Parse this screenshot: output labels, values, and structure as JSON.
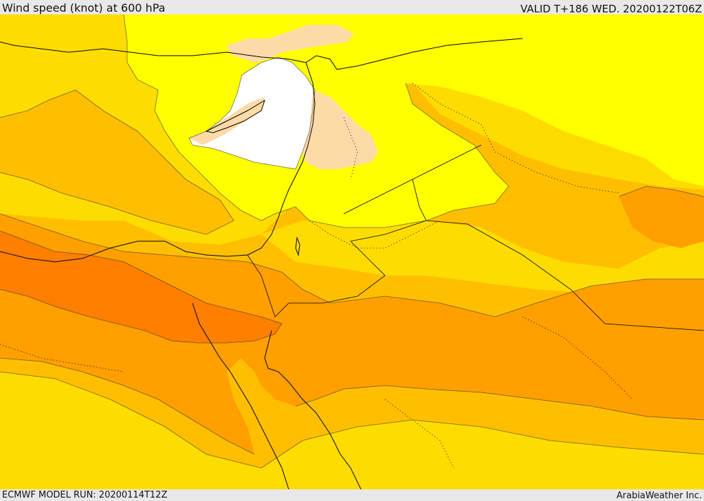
{
  "header": {
    "title": "Wind speed (knot) at 600 hPa",
    "valid": "VALID T+186 WED. 20200122T06Z"
  },
  "footer": {
    "model_run": "ECMWF MODEL RUN: 20200114T12Z",
    "credit": "ArabiaWeather Inc."
  },
  "map": {
    "colors": {
      "calm": "#ffffff",
      "peach": "#fcdba8",
      "yellow": "#ffff00",
      "yellow_orange": "#ffdc00",
      "gold": "#ffbf00",
      "orange": "#ff9f00",
      "dark_orange": "#ff7f00"
    }
  }
}
